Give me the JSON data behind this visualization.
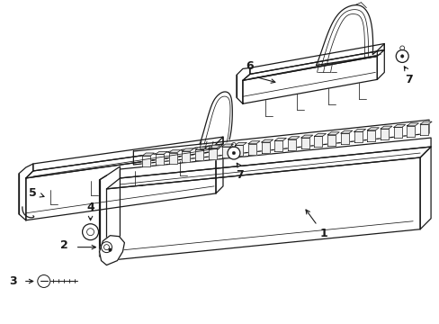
{
  "bg_color": "#ffffff",
  "line_color": "#1a1a1a",
  "lw": 0.9,
  "tlw": 0.55,
  "fig_width": 4.89,
  "fig_height": 3.6
}
